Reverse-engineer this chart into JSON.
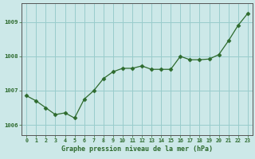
{
  "x": [
    0,
    1,
    2,
    3,
    4,
    5,
    6,
    7,
    8,
    9,
    10,
    11,
    12,
    13,
    14,
    15,
    16,
    17,
    18,
    19,
    20,
    21,
    22,
    23
  ],
  "y": [
    1006.85,
    1006.7,
    1006.5,
    1006.3,
    1006.35,
    1006.2,
    1006.75,
    1007.0,
    1007.35,
    1007.55,
    1007.65,
    1007.65,
    1007.72,
    1007.62,
    1007.62,
    1007.62,
    1008.0,
    1007.9,
    1007.9,
    1007.92,
    1008.05,
    1008.45,
    1008.9,
    1009.25
  ],
  "line_color": "#2d6a2d",
  "marker": "D",
  "marker_size": 2.5,
  "bg_color": "#cce8e8",
  "grid_color": "#99cccc",
  "xlabel": "Graphe pression niveau de la mer (hPa)",
  "xlabel_color": "#2d6a2d",
  "tick_color": "#2d6a2d",
  "ylim": [
    1005.7,
    1009.55
  ],
  "yticks": [
    1006,
    1007,
    1008,
    1009
  ],
  "xlim": [
    -0.5,
    23.5
  ],
  "xticks": [
    0,
    1,
    2,
    3,
    4,
    5,
    6,
    7,
    8,
    9,
    10,
    11,
    12,
    13,
    14,
    15,
    16,
    17,
    18,
    19,
    20,
    21,
    22,
    23
  ]
}
